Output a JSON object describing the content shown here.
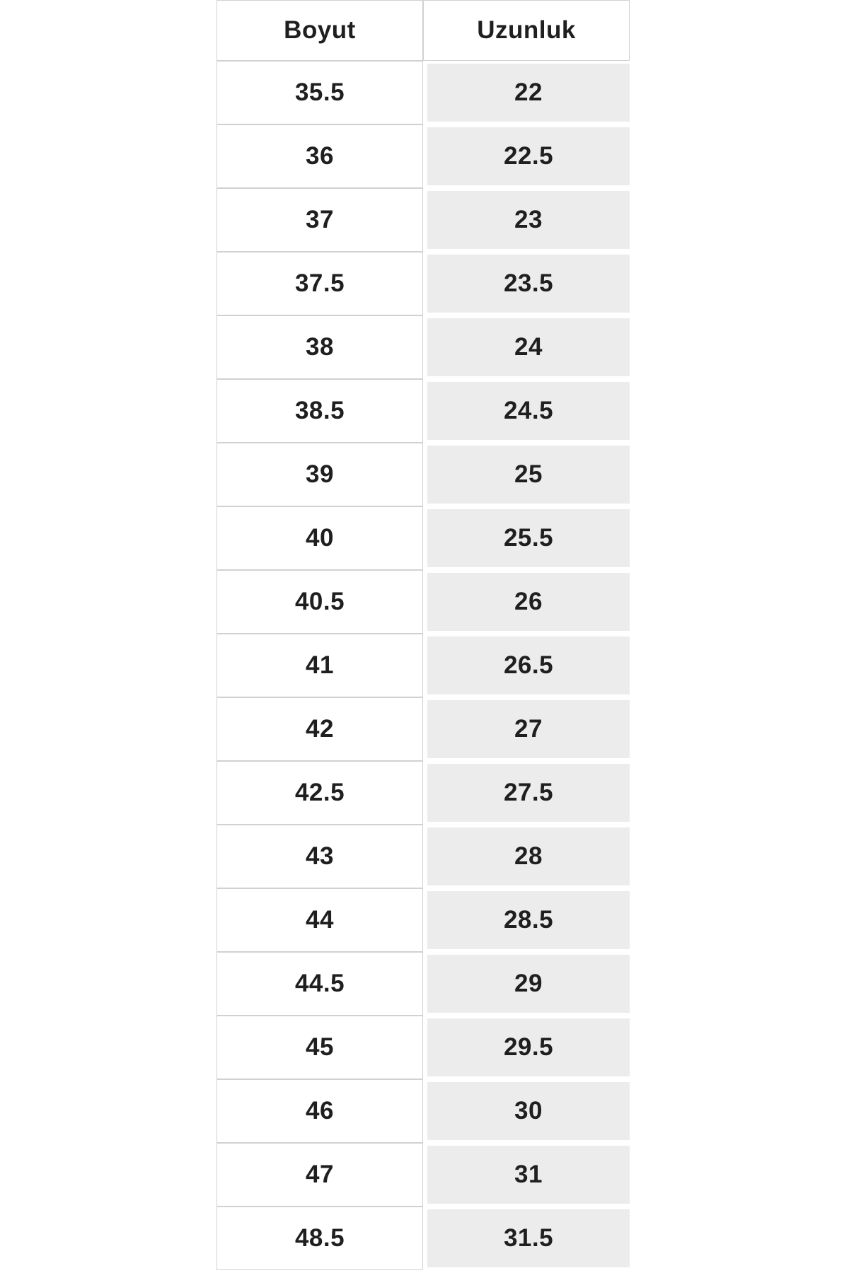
{
  "chart_data": {
    "type": "table",
    "columns": [
      "Boyut",
      "Uzunluk"
    ],
    "rows": [
      {
        "size": "35.5",
        "length": "22"
      },
      {
        "size": "36",
        "length": "22.5"
      },
      {
        "size": "37",
        "length": "23"
      },
      {
        "size": "37.5",
        "length": "23.5"
      },
      {
        "size": "38",
        "length": "24"
      },
      {
        "size": "38.5",
        "length": "24.5"
      },
      {
        "size": "39",
        "length": "25"
      },
      {
        "size": "40",
        "length": "25.5"
      },
      {
        "size": "40.5",
        "length": "26"
      },
      {
        "size": "41",
        "length": "26.5"
      },
      {
        "size": "42",
        "length": "27"
      },
      {
        "size": "42.5",
        "length": "27.5"
      },
      {
        "size": "43",
        "length": "28"
      },
      {
        "size": "44",
        "length": "28.5"
      },
      {
        "size": "44.5",
        "length": "29"
      },
      {
        "size": "45",
        "length": "29.5"
      },
      {
        "size": "46",
        "length": "30"
      },
      {
        "size": "47",
        "length": "31"
      },
      {
        "size": "48.5",
        "length": "31.5"
      }
    ]
  },
  "table": {
    "header": {
      "size_label": "Boyut",
      "length_label": "Uzunluk"
    }
  },
  "colors": {
    "background": "#ffffff",
    "cell_alt_background": "#ececec",
    "border": "#d1d1d1",
    "text": "#1f1f1f"
  }
}
